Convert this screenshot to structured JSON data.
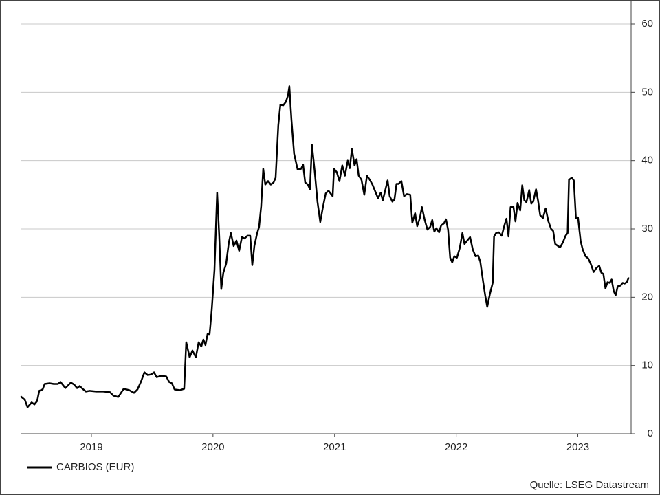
{
  "chart_data": {
    "type": "line",
    "source": "Quelle: LSEG Datastream",
    "x": [
      2018.918,
      2018.952,
      2018.975,
      2019.009,
      2019.031,
      2019.054,
      2019.071,
      2019.099,
      2019.116,
      2019.156,
      2019.19,
      2019.224,
      2019.246,
      2019.286,
      2019.331,
      2019.359,
      2019.382,
      2019.404,
      2019.427,
      2019.455,
      2019.484,
      2019.54,
      2019.597,
      2019.653,
      2019.681,
      2019.721,
      2019.766,
      2019.811,
      2019.851,
      2019.879,
      2019.907,
      2019.936,
      2019.964,
      2019.992,
      2020.015,
      2020.037,
      2020.077,
      2020.116,
      2020.139,
      2020.162,
      2020.184,
      2020.229,
      2020.263,
      2020.28,
      2020.308,
      2020.331,
      2020.359,
      2020.382,
      2020.404,
      2020.421,
      2020.438,
      2020.455,
      2020.472,
      2020.489,
      2020.512,
      2020.534,
      2020.551,
      2020.568,
      2020.585,
      2020.608,
      2020.63,
      2020.647,
      2020.67,
      2020.693,
      2020.715,
      2020.738,
      2020.76,
      2020.783,
      2020.806,
      2020.823,
      2020.84,
      2020.862,
      2020.879,
      2020.896,
      2020.913,
      2020.93,
      2020.953,
      2020.975,
      2020.998,
      2021.015,
      2021.037,
      2021.054,
      2021.077,
      2021.099,
      2021.116,
      2021.128,
      2021.145,
      2021.167,
      2021.196,
      2021.224,
      2021.241,
      2021.258,
      2021.28,
      2021.297,
      2021.314,
      2021.337,
      2021.359,
      2021.382,
      2021.404,
      2021.427,
      2021.45,
      2021.484,
      2021.495,
      2021.518,
      2021.54,
      2021.563,
      2021.585,
      2021.608,
      2021.625,
      2021.642,
      2021.664,
      2021.681,
      2021.698,
      2021.721,
      2021.744,
      2021.766,
      2021.789,
      2021.811,
      2021.834,
      2021.857,
      2021.879,
      2021.896,
      2021.913,
      2021.936,
      2021.953,
      2021.975,
      2021.992,
      2022.009,
      2022.026,
      2022.049,
      2022.071,
      2022.094,
      2022.122,
      2022.139,
      2022.162,
      2022.179,
      2022.201,
      2022.218,
      2022.241,
      2022.263,
      2022.286,
      2022.303,
      2022.32,
      2022.337,
      2022.359,
      2022.376,
      2022.399,
      2022.416,
      2022.433,
      2022.45,
      2022.467,
      2022.484,
      2022.506,
      2022.529,
      2022.551,
      2022.568,
      2022.591,
      2022.614,
      2022.636,
      2022.659,
      2022.681,
      2022.698,
      2022.721,
      2022.738,
      2022.755,
      2022.777,
      2022.8,
      2022.811,
      2022.828,
      2022.851,
      2022.874,
      2022.896,
      2022.913,
      2022.93,
      2022.947,
      2022.97,
      2022.987,
      2023.004,
      2023.026,
      2023.043,
      2023.06,
      2023.077,
      2023.1,
      2023.117,
      2023.133,
      2023.156,
      2023.173,
      2023.19,
      2023.213,
      2023.235,
      2023.258,
      2023.28,
      2023.297,
      2023.314,
      2023.337,
      2023.354,
      2023.376,
      2023.399,
      2023.416,
      2023.427,
      2023.45,
      2023.467,
      2023.484,
      2023.501,
      2023.523,
      2023.54,
      2023.563,
      2023.585,
      2023.608,
      2023.63,
      2023.653,
      2023.676,
      2023.693,
      2023.71,
      2023.727,
      2023.744,
      2023.761,
      2023.778,
      2023.795,
      2023.811,
      2023.828,
      2023.851,
      2023.868,
      2023.885,
      2023.902,
      2023.919
    ],
    "series": [
      {
        "name": "CARBIOS (EUR)",
        "color": "#000000",
        "values": [
          5.5,
          5.0,
          3.9,
          4.6,
          4.3,
          4.8,
          6.3,
          6.5,
          7.3,
          7.4,
          7.3,
          7.3,
          7.6,
          6.7,
          7.5,
          7.2,
          6.7,
          7.0,
          6.6,
          6.2,
          6.3,
          6.2,
          6.2,
          6.1,
          5.6,
          5.4,
          6.6,
          6.4,
          6.0,
          6.5,
          7.6,
          9.0,
          8.6,
          8.7,
          9.0,
          8.3,
          8.5,
          8.4,
          7.6,
          7.4,
          6.5,
          6.4,
          6.6,
          13.4,
          11.2,
          12.2,
          11.2,
          13.4,
          12.8,
          13.8,
          13.0,
          14.6,
          14.6,
          18.0,
          24.0,
          35.3,
          29.0,
          21.2,
          23.6,
          24.9,
          28.0,
          29.4,
          27.5,
          28.3,
          26.8,
          28.8,
          28.6,
          29.0,
          29.0,
          24.7,
          27.5,
          29.3,
          30.3,
          33.3,
          38.8,
          36.5,
          37.0,
          36.5,
          36.8,
          37.5,
          45.2,
          48.2,
          48.1,
          48.6,
          49.5,
          50.9,
          46.0,
          41.0,
          38.7,
          38.8,
          39.4,
          36.8,
          36.5,
          35.8,
          42.3,
          38.3,
          34.0,
          31.0,
          33.2,
          35.2,
          35.6,
          34.8,
          38.8,
          38.3,
          37.0,
          39.3,
          37.8,
          40.0,
          38.9,
          41.7,
          39.3,
          40.2,
          37.8,
          37.2,
          35.0,
          37.8,
          37.2,
          36.5,
          35.5,
          34.5,
          35.3,
          34.2,
          35.4,
          37.1,
          34.8,
          34.0,
          34.3,
          36.6,
          36.6,
          37.0,
          34.8,
          35.1,
          35.0,
          30.9,
          32.3,
          30.4,
          31.6,
          33.2,
          31.3,
          29.9,
          30.3,
          31.3,
          29.6,
          30.1,
          29.5,
          30.5,
          30.8,
          31.4,
          29.9,
          25.8,
          25.1,
          26.0,
          25.8,
          27.2,
          29.4,
          27.8,
          28.3,
          28.8,
          27.0,
          26.0,
          26.1,
          25.2,
          22.3,
          20.3,
          18.6,
          20.5,
          22.1,
          28.9,
          29.4,
          29.5,
          29.0,
          30.5,
          31.5,
          28.9,
          33.2,
          33.3,
          31.1,
          33.8,
          32.7,
          36.4,
          34.2,
          33.9,
          35.7,
          33.7,
          34.0,
          35.8,
          34.1,
          32.0,
          31.6,
          33.0,
          31.1,
          30.0,
          29.7,
          27.8,
          27.5,
          27.3,
          28.0,
          29.0,
          29.4,
          37.2,
          37.5,
          37.1,
          31.6,
          31.7,
          28.2,
          27.0,
          26.0,
          25.7,
          24.8,
          23.7,
          24.3,
          24.6,
          23.6,
          23.4,
          21.3,
          22.2,
          22.1,
          22.6,
          20.9,
          20.3,
          21.6,
          21.7,
          22.1,
          22.0,
          22.2,
          22.9
        ]
      }
    ],
    "xlim": [
      2018.918,
      2023.938
    ],
    "xticks": [
      {
        "value": 2019.5,
        "label": "2019"
      },
      {
        "value": 2020.5,
        "label": "2020"
      },
      {
        "value": 2021.5,
        "label": "2021"
      },
      {
        "value": 2022.5,
        "label": "2022"
      },
      {
        "value": 2023.5,
        "label": "2023"
      }
    ],
    "ylim": [
      0,
      60
    ],
    "yticks": [
      0,
      10,
      20,
      30,
      40,
      50,
      60
    ],
    "grid": true,
    "legend": "bottom-left"
  }
}
